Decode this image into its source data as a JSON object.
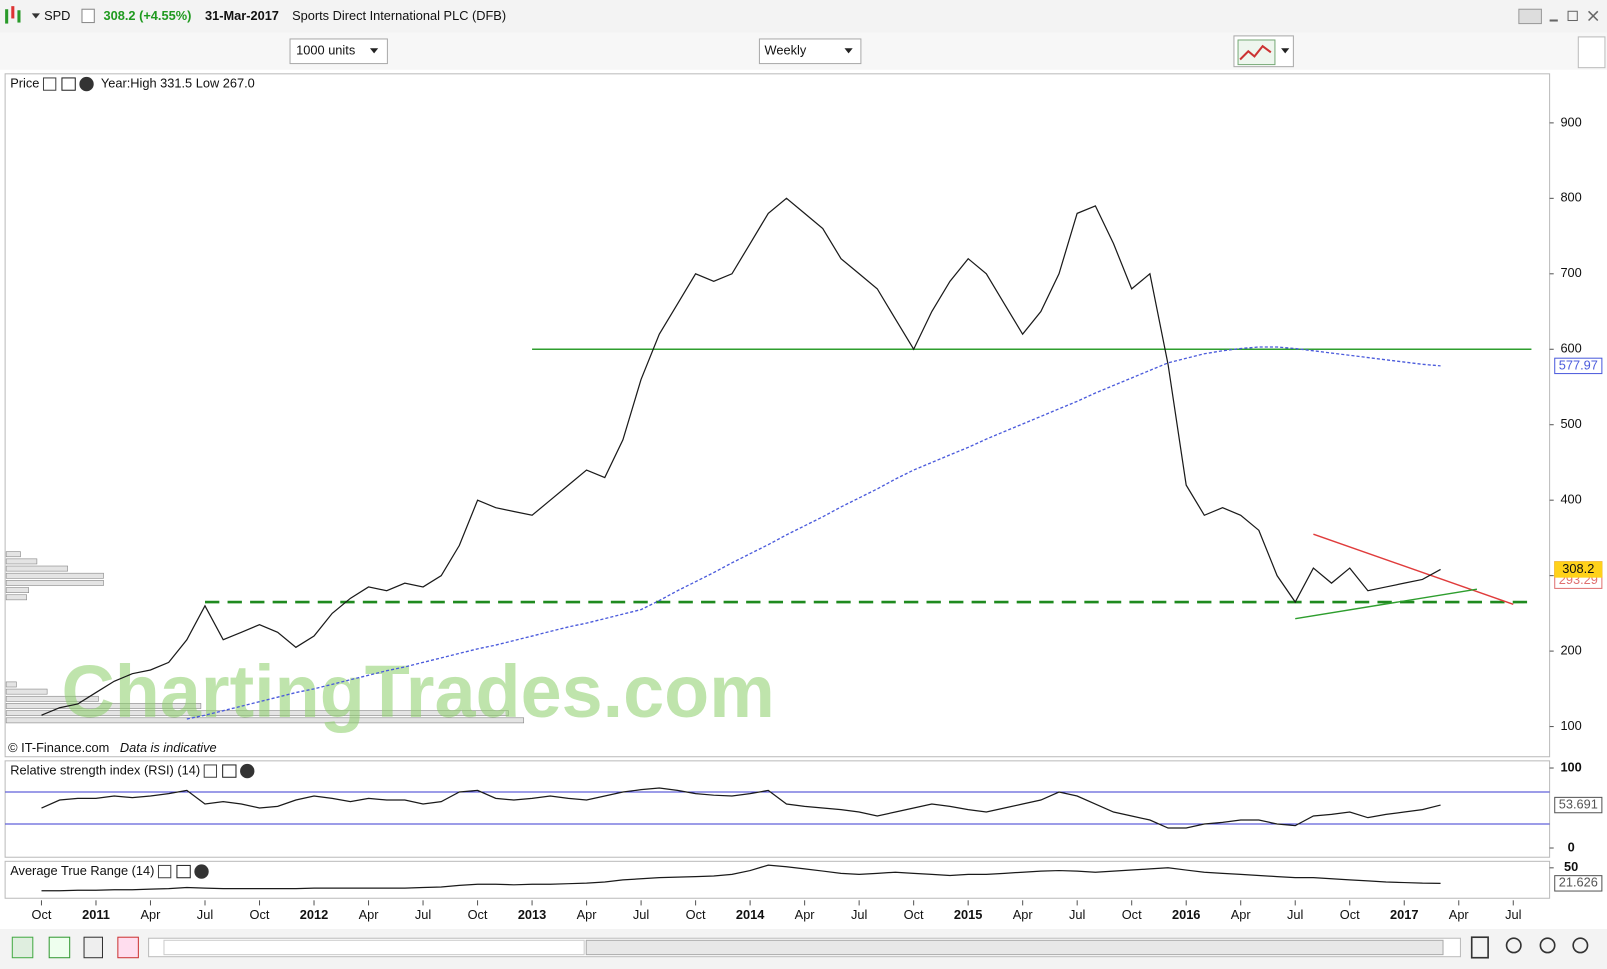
{
  "header": {
    "symbol": "SPD",
    "change": "308.2 (+4.55%)",
    "date": "31-Mar-2017",
    "name": "Sports Direct International PLC (DFB)"
  },
  "toolbar": {
    "units": "1000 units",
    "interval": "Weekly"
  },
  "chart_data": [
    {
      "type": "line",
      "title": "Price",
      "subtitle": "Year:High 331.5 Low 267.0",
      "source": "© IT-Finance.com",
      "note": "Data is indicative",
      "watermark": "ChartingTrades.com",
      "x": [
        "2010-10",
        "2010-11",
        "2010-12",
        "2011-01",
        "2011-02",
        "2011-03",
        "2011-04",
        "2011-05",
        "2011-06",
        "2011-07",
        "2011-08",
        "2011-09",
        "2011-10",
        "2011-11",
        "2011-12",
        "2012-01",
        "2012-02",
        "2012-03",
        "2012-04",
        "2012-05",
        "2012-06",
        "2012-07",
        "2012-08",
        "2012-09",
        "2012-10",
        "2012-11",
        "2012-12",
        "2013-01",
        "2013-02",
        "2013-03",
        "2013-04",
        "2013-05",
        "2013-06",
        "2013-07",
        "2013-08",
        "2013-09",
        "2013-10",
        "2013-11",
        "2013-12",
        "2014-01",
        "2014-02",
        "2014-03",
        "2014-04",
        "2014-05",
        "2014-06",
        "2014-07",
        "2014-08",
        "2014-09",
        "2014-10",
        "2014-11",
        "2014-12",
        "2015-01",
        "2015-02",
        "2015-03",
        "2015-04",
        "2015-05",
        "2015-06",
        "2015-07",
        "2015-08",
        "2015-09",
        "2015-10",
        "2015-11",
        "2015-12",
        "2016-01",
        "2016-02",
        "2016-03",
        "2016-04",
        "2016-05",
        "2016-06",
        "2016-07",
        "2016-08",
        "2016-09",
        "2016-10",
        "2016-11",
        "2016-12",
        "2017-01",
        "2017-02",
        "2017-03"
      ],
      "series": [
        {
          "name": "Price",
          "color": "#1a1a1a",
          "dash": false,
          "values": [
            115,
            125,
            130,
            145,
            160,
            170,
            175,
            185,
            215,
            260,
            215,
            225,
            235,
            225,
            205,
            220,
            250,
            270,
            285,
            280,
            290,
            285,
            300,
            340,
            400,
            390,
            385,
            380,
            400,
            420,
            440,
            430,
            480,
            560,
            620,
            660,
            700,
            690,
            700,
            740,
            780,
            800,
            780,
            760,
            720,
            700,
            680,
            640,
            600,
            650,
            690,
            720,
            700,
            660,
            620,
            650,
            700,
            780,
            790,
            740,
            680,
            700,
            580,
            420,
            380,
            390,
            380,
            360,
            300,
            265,
            310,
            290,
            310,
            280,
            285,
            290,
            295,
            308.2
          ]
        },
        {
          "name": "MA",
          "color": "#4b5bdc",
          "dash": true,
          "values": [
            null,
            null,
            null,
            null,
            null,
            null,
            null,
            null,
            110,
            115,
            121,
            127,
            133,
            139,
            145,
            150,
            156,
            162,
            168,
            174,
            179,
            185,
            191,
            197,
            203,
            208,
            214,
            220,
            226,
            232,
            237,
            243,
            249,
            255,
            267,
            280,
            292,
            304,
            317,
            329,
            341,
            354,
            366,
            378,
            391,
            403,
            415,
            428,
            440,
            450,
            460,
            470,
            481,
            491,
            501,
            511,
            521,
            531,
            542,
            552,
            562,
            572,
            582,
            588,
            594,
            598,
            601,
            603,
            603,
            601,
            598,
            595,
            592,
            589,
            586,
            583,
            580,
            577.97
          ]
        }
      ],
      "badges": [
        {
          "value": 308.23,
          "color": "#b03cb0"
        },
        {
          "value": 293.29,
          "color": "#e07070"
        }
      ],
      "drawings": [
        {
          "x": [
            "2013-01",
            "2017-08"
          ],
          "y": [
            600,
            600
          ],
          "color": "#2e9e2e",
          "dash": false
        },
        {
          "x": [
            "2011-07",
            "2017-08"
          ],
          "y": [
            265,
            265
          ],
          "color": "#1f8a1f",
          "dash": true
        },
        {
          "x": [
            "2016-08",
            "2017-07"
          ],
          "y": [
            355,
            262
          ],
          "color": "#e03c3c",
          "dash": false
        },
        {
          "x": [
            "2016-07",
            "2017-05"
          ],
          "y": [
            243,
            282
          ],
          "color": "#2e9e2e",
          "dash": false
        }
      ],
      "xlim": [
        "2010-08",
        "2017-09"
      ],
      "xticks": [
        {
          "value": "2010-10",
          "label": "Oct"
        },
        {
          "value": "2011-01",
          "label": "2011"
        },
        {
          "value": "2011-04",
          "label": "Apr"
        },
        {
          "value": "2011-07",
          "label": "Jul"
        },
        {
          "value": "2011-10",
          "label": "Oct"
        },
        {
          "value": "2012-01",
          "label": "2012"
        },
        {
          "value": "2012-04",
          "label": "Apr"
        },
        {
          "value": "2012-07",
          "label": "Jul"
        },
        {
          "value": "2012-10",
          "label": "Oct"
        },
        {
          "value": "2013-01",
          "label": "2013"
        },
        {
          "value": "2013-04",
          "label": "Apr"
        },
        {
          "value": "2013-07",
          "label": "Jul"
        },
        {
          "value": "2013-10",
          "label": "Oct"
        },
        {
          "value": "2014-01",
          "label": "2014"
        },
        {
          "value": "2014-04",
          "label": "Apr"
        },
        {
          "value": "2014-07",
          "label": "Jul"
        },
        {
          "value": "2014-10",
          "label": "Oct"
        },
        {
          "value": "2015-01",
          "label": "2015"
        },
        {
          "value": "2015-04",
          "label": "Apr"
        },
        {
          "value": "2015-07",
          "label": "Jul"
        },
        {
          "value": "2015-10",
          "label": "Oct"
        },
        {
          "value": "2016-01",
          "label": "2016"
        },
        {
          "value": "2016-04",
          "label": "Apr"
        },
        {
          "value": "2016-07",
          "label": "Jul"
        },
        {
          "value": "2016-10",
          "label": "Oct"
        },
        {
          "value": "2017-01",
          "label": "2017"
        },
        {
          "value": "2017-04",
          "label": "Apr"
        },
        {
          "value": "2017-07",
          "label": "Jul"
        }
      ],
      "ylim": [
        60,
        965
      ],
      "yticks": [
        100,
        200,
        300,
        400,
        500,
        600,
        700,
        800,
        900
      ]
    },
    {
      "type": "line",
      "title": "Relative strength index (RSI) (14)",
      "series": [
        {
          "name": "RSI",
          "color": "#1a1a1a",
          "dash": false,
          "values": [
            50,
            60,
            62,
            62,
            65,
            63,
            65,
            68,
            72,
            55,
            58,
            55,
            50,
            52,
            60,
            65,
            62,
            58,
            62,
            60,
            60,
            55,
            58,
            70,
            72,
            62,
            60,
            62,
            65,
            62,
            60,
            65,
            70,
            73,
            75,
            72,
            68,
            66,
            65,
            68,
            72,
            55,
            52,
            50,
            48,
            45,
            40,
            45,
            50,
            55,
            52,
            48,
            45,
            50,
            55,
            60,
            70,
            65,
            55,
            45,
            40,
            35,
            25,
            25,
            30,
            32,
            35,
            35,
            30,
            28,
            40,
            42,
            45,
            38,
            42,
            45,
            48,
            53.691
          ]
        }
      ],
      "levels": [
        {
          "value": 70,
          "color": "#3a3ad0"
        },
        {
          "value": 30,
          "color": "#3a3ad0"
        }
      ],
      "ylim": [
        0,
        100
      ],
      "yticks": [
        0,
        100
      ]
    },
    {
      "type": "line",
      "title": "Average True Range (14)",
      "series": [
        {
          "name": "ATR",
          "color": "#1a1a1a",
          "dash": false,
          "values": [
            8,
            8,
            9,
            9,
            10,
            10,
            11,
            12,
            14,
            13,
            12,
            12,
            12,
            12,
            12,
            13,
            13,
            13,
            13,
            13,
            13,
            14,
            15,
            18,
            20,
            20,
            19,
            20,
            20,
            21,
            22,
            24,
            28,
            30,
            32,
            33,
            34,
            35,
            38,
            45,
            55,
            52,
            48,
            44,
            40,
            38,
            40,
            42,
            40,
            38,
            36,
            38,
            38,
            40,
            42,
            44,
            45,
            44,
            42,
            44,
            46,
            48,
            50,
            46,
            42,
            40,
            38,
            36,
            34,
            32,
            32,
            30,
            28,
            26,
            24,
            23,
            22,
            21.626
          ]
        }
      ],
      "ylim": [
        0,
        60
      ],
      "yticks": [
        50
      ]
    }
  ]
}
